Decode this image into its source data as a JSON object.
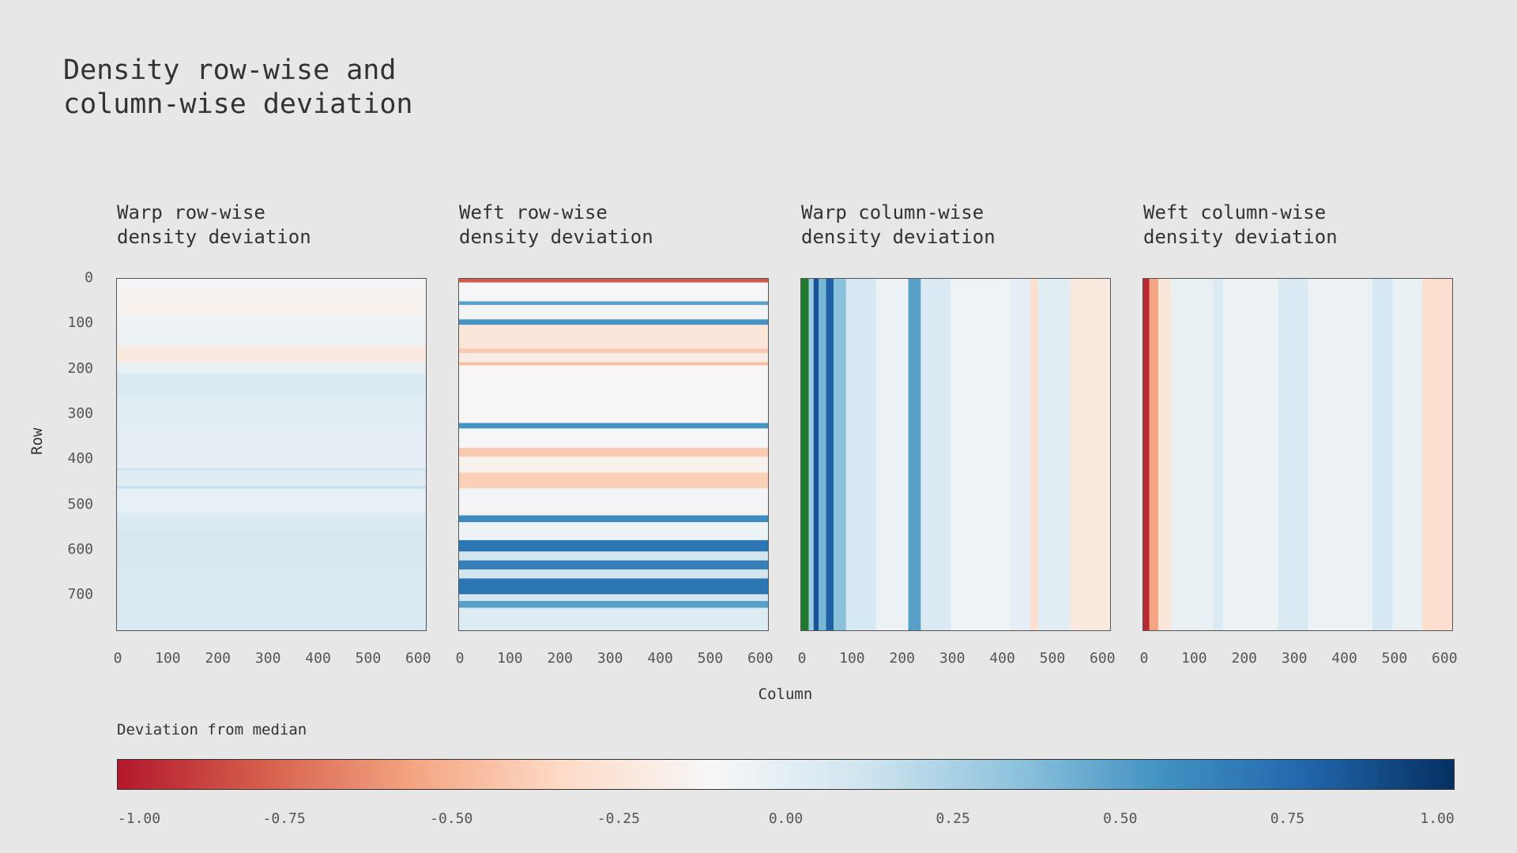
{
  "title": "Density row-wise and\ncolumn-wise deviation",
  "colorbar_label": "Deviation from median",
  "colors": {
    "background": "#e7e7e7",
    "scale": [
      "#b2182b",
      "#d6604d",
      "#f4a582",
      "#fddbc7",
      "#f7f7f7",
      "#d1e5f0",
      "#92c5de",
      "#4393c3",
      "#2166ac",
      "#053061"
    ]
  },
  "chart_data": {
    "type": "heatmap",
    "colormap": "diverging red-white-blue",
    "ylabel": "Row",
    "xlabel": "Column",
    "ylim": [
      0,
      780
    ],
    "xlim": [
      0,
      620
    ],
    "yticks": [
      "0",
      "100",
      "200",
      "300",
      "400",
      "500",
      "600",
      "700"
    ],
    "xticks": [
      "0",
      "100",
      "200",
      "300",
      "400",
      "500",
      "600"
    ],
    "colorbar": {
      "label": "Deviation from median",
      "range": [
        -1.0,
        1.0
      ],
      "ticks": [
        "-1.00",
        "-0.75",
        "-0.50",
        "-0.25",
        "0.00",
        "0.25",
        "0.50",
        "0.75",
        "1.00"
      ]
    },
    "panels": [
      {
        "title": "Warp row-wise\ndensity deviation",
        "orientation": "rows",
        "bands": [
          {
            "start": 0,
            "end": 20,
            "value": -0.08
          },
          {
            "start": 20,
            "end": 80,
            "value": -0.15
          },
          {
            "start": 80,
            "end": 100,
            "value": -0.06
          },
          {
            "start": 100,
            "end": 150,
            "value": -0.04
          },
          {
            "start": 150,
            "end": 185,
            "value": -0.22
          },
          {
            "start": 185,
            "end": 210,
            "value": -0.03
          },
          {
            "start": 210,
            "end": 260,
            "value": 0.05
          },
          {
            "start": 260,
            "end": 330,
            "value": 0.02
          },
          {
            "start": 330,
            "end": 420,
            "value": 0.0
          },
          {
            "start": 420,
            "end": 425,
            "value": 0.12
          },
          {
            "start": 425,
            "end": 460,
            "value": 0.03
          },
          {
            "start": 460,
            "end": 466,
            "value": 0.14
          },
          {
            "start": 466,
            "end": 520,
            "value": -0.02
          },
          {
            "start": 520,
            "end": 560,
            "value": 0.05
          },
          {
            "start": 560,
            "end": 640,
            "value": 0.07
          },
          {
            "start": 640,
            "end": 780,
            "value": 0.06
          }
        ]
      },
      {
        "title": "Weft row-wise\ndensity deviation",
        "orientation": "rows",
        "bands": [
          {
            "start": 0,
            "end": 8,
            "value": -0.8
          },
          {
            "start": 8,
            "end": 50,
            "value": -0.1
          },
          {
            "start": 50,
            "end": 58,
            "value": 0.5
          },
          {
            "start": 58,
            "end": 90,
            "value": -0.08
          },
          {
            "start": 90,
            "end": 102,
            "value": 0.55
          },
          {
            "start": 102,
            "end": 155,
            "value": -0.25
          },
          {
            "start": 155,
            "end": 165,
            "value": -0.4
          },
          {
            "start": 165,
            "end": 185,
            "value": -0.2
          },
          {
            "start": 185,
            "end": 192,
            "value": -0.45
          },
          {
            "start": 192,
            "end": 320,
            "value": -0.12
          },
          {
            "start": 320,
            "end": 332,
            "value": 0.55
          },
          {
            "start": 332,
            "end": 375,
            "value": -0.1
          },
          {
            "start": 375,
            "end": 395,
            "value": -0.4
          },
          {
            "start": 395,
            "end": 430,
            "value": -0.15
          },
          {
            "start": 430,
            "end": 465,
            "value": -0.38
          },
          {
            "start": 465,
            "end": 525,
            "value": -0.08
          },
          {
            "start": 525,
            "end": 540,
            "value": 0.6
          },
          {
            "start": 540,
            "end": 580,
            "value": -0.05
          },
          {
            "start": 580,
            "end": 605,
            "value": 0.7
          },
          {
            "start": 605,
            "end": 625,
            "value": 0.1
          },
          {
            "start": 625,
            "end": 645,
            "value": 0.65
          },
          {
            "start": 645,
            "end": 665,
            "value": 0.1
          },
          {
            "start": 665,
            "end": 700,
            "value": 0.7
          },
          {
            "start": 700,
            "end": 715,
            "value": 0.1
          },
          {
            "start": 715,
            "end": 730,
            "value": 0.5
          },
          {
            "start": 730,
            "end": 780,
            "value": 0.04
          }
        ]
      },
      {
        "title": "Warp column-wise\ndensity deviation",
        "orientation": "columns",
        "bands": [
          {
            "start": 0,
            "end": 15,
            "value": -0.9,
            "color": "#1f7a2e"
          },
          {
            "start": 15,
            "end": 25,
            "value": 0.3
          },
          {
            "start": 25,
            "end": 35,
            "value": 0.85
          },
          {
            "start": 35,
            "end": 50,
            "value": 0.4
          },
          {
            "start": 50,
            "end": 65,
            "value": 0.8
          },
          {
            "start": 65,
            "end": 90,
            "value": 0.35
          },
          {
            "start": 90,
            "end": 150,
            "value": 0.08
          },
          {
            "start": 150,
            "end": 215,
            "value": -0.04
          },
          {
            "start": 215,
            "end": 240,
            "value": 0.5
          },
          {
            "start": 240,
            "end": 300,
            "value": 0.05
          },
          {
            "start": 300,
            "end": 420,
            "value": -0.06
          },
          {
            "start": 420,
            "end": 460,
            "value": 0.0
          },
          {
            "start": 460,
            "end": 475,
            "value": -0.3
          },
          {
            "start": 475,
            "end": 540,
            "value": 0.02
          },
          {
            "start": 540,
            "end": 620,
            "value": -0.22
          }
        ]
      },
      {
        "title": "Weft column-wise\ndensity deviation",
        "orientation": "columns",
        "bands": [
          {
            "start": 0,
            "end": 12,
            "value": -0.95
          },
          {
            "start": 12,
            "end": 30,
            "value": -0.55
          },
          {
            "start": 30,
            "end": 55,
            "value": -0.25
          },
          {
            "start": 55,
            "end": 140,
            "value": -0.03
          },
          {
            "start": 140,
            "end": 160,
            "value": 0.06
          },
          {
            "start": 160,
            "end": 270,
            "value": -0.05
          },
          {
            "start": 270,
            "end": 330,
            "value": 0.05
          },
          {
            "start": 330,
            "end": 460,
            "value": -0.04
          },
          {
            "start": 460,
            "end": 500,
            "value": 0.08
          },
          {
            "start": 500,
            "end": 560,
            "value": -0.03
          },
          {
            "start": 560,
            "end": 620,
            "value": -0.3
          }
        ]
      }
    ]
  }
}
